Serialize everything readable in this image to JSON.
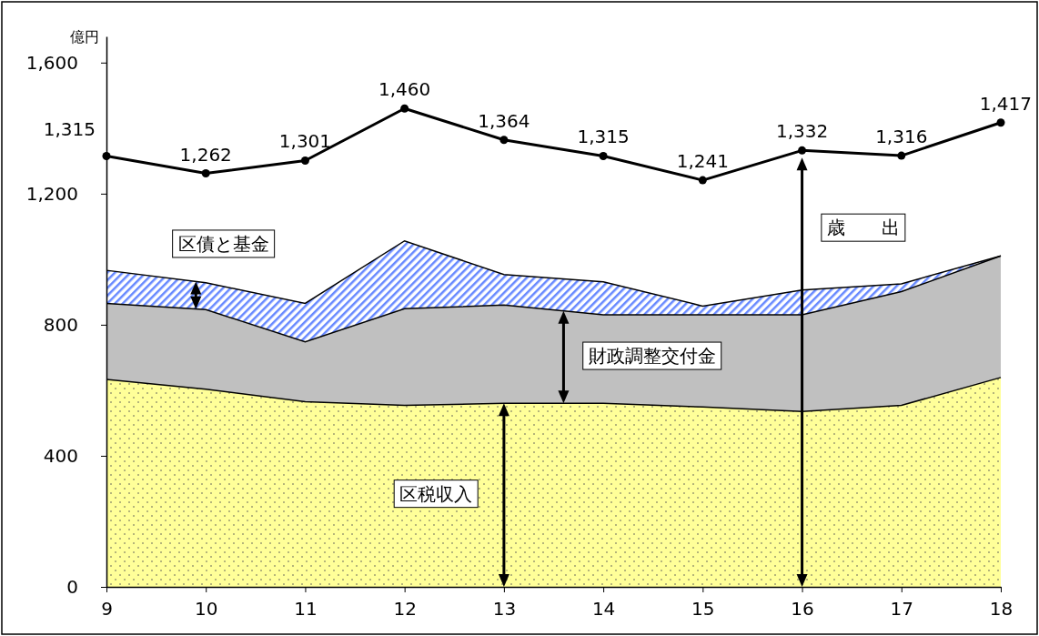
{
  "chart_data": {
    "type": "area",
    "stacked": true,
    "ylabel": "億円",
    "categories": [
      "9",
      "10",
      "11",
      "12",
      "13",
      "14",
      "15",
      "16",
      "17",
      "18"
    ],
    "ylim": [
      0,
      1680
    ],
    "yticks": [
      0,
      400,
      800,
      {
        "value": 1200,
        "label": "1,200"
      },
      {
        "value": 1600,
        "label": "1,600"
      }
    ],
    "series": [
      {
        "name": "区税収入",
        "color": "#ffff99",
        "values": [
          633,
          603,
          565,
          554,
          560,
          560,
          549,
          535,
          554,
          639
        ]
      },
      {
        "name": "財政調整交付金",
        "color": "#c0c0c0",
        "values": [
          232,
          243,
          183,
          295,
          300,
          270,
          281,
          295,
          347,
          371
        ]
      },
      {
        "name": "区債と基金",
        "color": "#6688ff",
        "values": [
          101,
          82,
          117,
          207,
          93,
          101,
          27,
          76,
          24,
          0
        ]
      },
      {
        "name": "歳　　出",
        "type": "line",
        "color": "#000000",
        "marker": "circle",
        "values": [
          1315,
          1262,
          1301,
          1460,
          1364,
          1315,
          1241,
          1332,
          1316,
          1417
        ],
        "value_labels": [
          "1,315",
          "1,262",
          "1,301",
          "1,460",
          "1,364",
          "1,315",
          "1,241",
          "1,332",
          "1,316",
          "1,417"
        ]
      }
    ]
  }
}
